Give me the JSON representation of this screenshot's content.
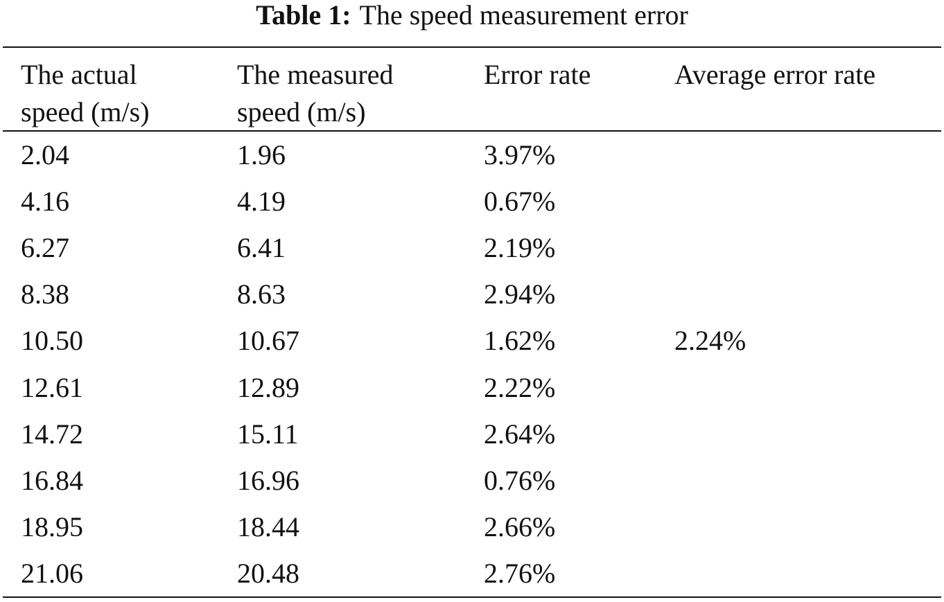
{
  "caption": {
    "label": "Table 1:",
    "title": "The speed measurement error"
  },
  "table": {
    "headers": [
      [
        "The actual",
        "speed (m/s)"
      ],
      [
        "The measured",
        "speed (m/s)"
      ],
      [
        "Error rate"
      ],
      [
        "Average error rate"
      ]
    ],
    "rows": [
      [
        "2.04",
        "1.96",
        "3.97%"
      ],
      [
        "4.16",
        "4.19",
        "0.67%"
      ],
      [
        "6.27",
        "6.41",
        "2.19%"
      ],
      [
        "8.38",
        "8.63",
        "2.94%"
      ],
      [
        "10.50",
        "10.67",
        "1.62%"
      ],
      [
        "12.61",
        "12.89",
        "2.22%"
      ],
      [
        "14.72",
        "15.11",
        "2.64%"
      ],
      [
        "16.84",
        "16.96",
        "0.76%"
      ],
      [
        "18.95",
        "18.44",
        "2.66%"
      ],
      [
        "21.06",
        "20.48",
        "2.76%"
      ]
    ],
    "average": "2.24%"
  }
}
